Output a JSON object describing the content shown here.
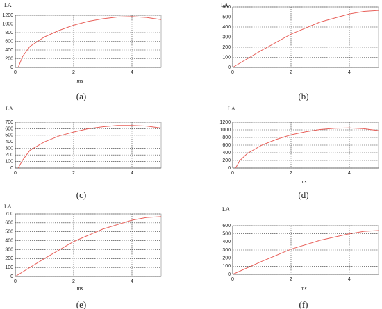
{
  "chart_data": [
    {
      "type": "line",
      "caption": "(a)",
      "ylabel": "LA",
      "xlabel": "ms",
      "color": "#e8605a",
      "grid": true,
      "x": [
        0.1,
        0.25,
        0.5,
        1,
        1.5,
        2,
        2.5,
        3,
        3.5,
        4,
        4.5,
        5
      ],
      "values": [
        0,
        250,
        480,
        700,
        850,
        970,
        1060,
        1120,
        1160,
        1170,
        1150,
        1100
      ],
      "xlim": [
        0,
        5
      ],
      "xticks": [
        0,
        2,
        4
      ],
      "ylim": [
        0,
        1200
      ],
      "yticks": [
        0,
        200,
        400,
        600,
        800,
        1000,
        1200
      ]
    },
    {
      "type": "line",
      "caption": "(b)",
      "ylabel": "LA",
      "color": "#e8605a",
      "grid": true,
      "x": [
        0,
        1,
        2,
        3,
        4,
        4.5,
        5
      ],
      "values": [
        0,
        170,
        330,
        450,
        530,
        555,
        565
      ],
      "xlim": [
        0,
        5
      ],
      "xticks": [
        0,
        2,
        4
      ],
      "ylim": [
        0,
        600
      ],
      "yticks": [
        0,
        100,
        200,
        300,
        400,
        500,
        600
      ]
    },
    {
      "type": "line",
      "caption": "(c)",
      "ylabel": "LA",
      "color": "#e8605a",
      "grid": true,
      "x": [
        0.1,
        0.25,
        0.5,
        1,
        1.5,
        2,
        2.5,
        3,
        3.5,
        4,
        4.5,
        5
      ],
      "values": [
        0,
        120,
        270,
        400,
        490,
        550,
        600,
        630,
        650,
        650,
        640,
        610
      ],
      "xlim": [
        0,
        5
      ],
      "xticks": [
        0,
        2,
        4
      ],
      "ylim": [
        0,
        700
      ],
      "yticks": [
        0,
        100,
        200,
        300,
        400,
        500,
        600,
        700
      ]
    },
    {
      "type": "line",
      "caption": "(d)",
      "ylabel": "LA",
      "xlabel": "ms",
      "color": "#e8605a",
      "grid": true,
      "x": [
        0.1,
        0.25,
        0.5,
        1,
        1.5,
        2,
        2.5,
        3,
        3.5,
        4,
        4.5,
        5
      ],
      "values": [
        0,
        200,
        380,
        600,
        750,
        870,
        950,
        1010,
        1040,
        1050,
        1030,
        980
      ],
      "xlim": [
        0,
        5
      ],
      "xticks": [
        0,
        2,
        4
      ],
      "ylim": [
        0,
        1200
      ],
      "yticks": [
        0,
        200,
        400,
        600,
        800,
        1000,
        1200
      ]
    },
    {
      "type": "line",
      "caption": "(e)",
      "ylabel": "LA",
      "xlabel": "ms",
      "color": "#e8605a",
      "grid": true,
      "x": [
        0,
        1,
        2,
        3,
        4,
        4.5,
        5
      ],
      "values": [
        0,
        200,
        390,
        530,
        630,
        660,
        670
      ],
      "xlim": [
        0,
        5
      ],
      "xticks": [
        0,
        2,
        4
      ],
      "ylim": [
        0,
        700
      ],
      "yticks": [
        0,
        100,
        200,
        300,
        400,
        500,
        600,
        700
      ]
    },
    {
      "type": "line",
      "caption": "(f)",
      "ylabel": "LA",
      "xlabel": "ms",
      "color": "#e8605a",
      "grid": true,
      "x": [
        0,
        1,
        2,
        3,
        4,
        4.5,
        5
      ],
      "values": [
        0,
        160,
        310,
        420,
        500,
        530,
        540
      ],
      "xlim": [
        0,
        5
      ],
      "xticks": [
        0,
        2,
        4
      ],
      "ylim": [
        0,
        600
      ],
      "yticks": [
        0,
        100,
        200,
        300,
        400,
        500,
        600
      ]
    }
  ]
}
